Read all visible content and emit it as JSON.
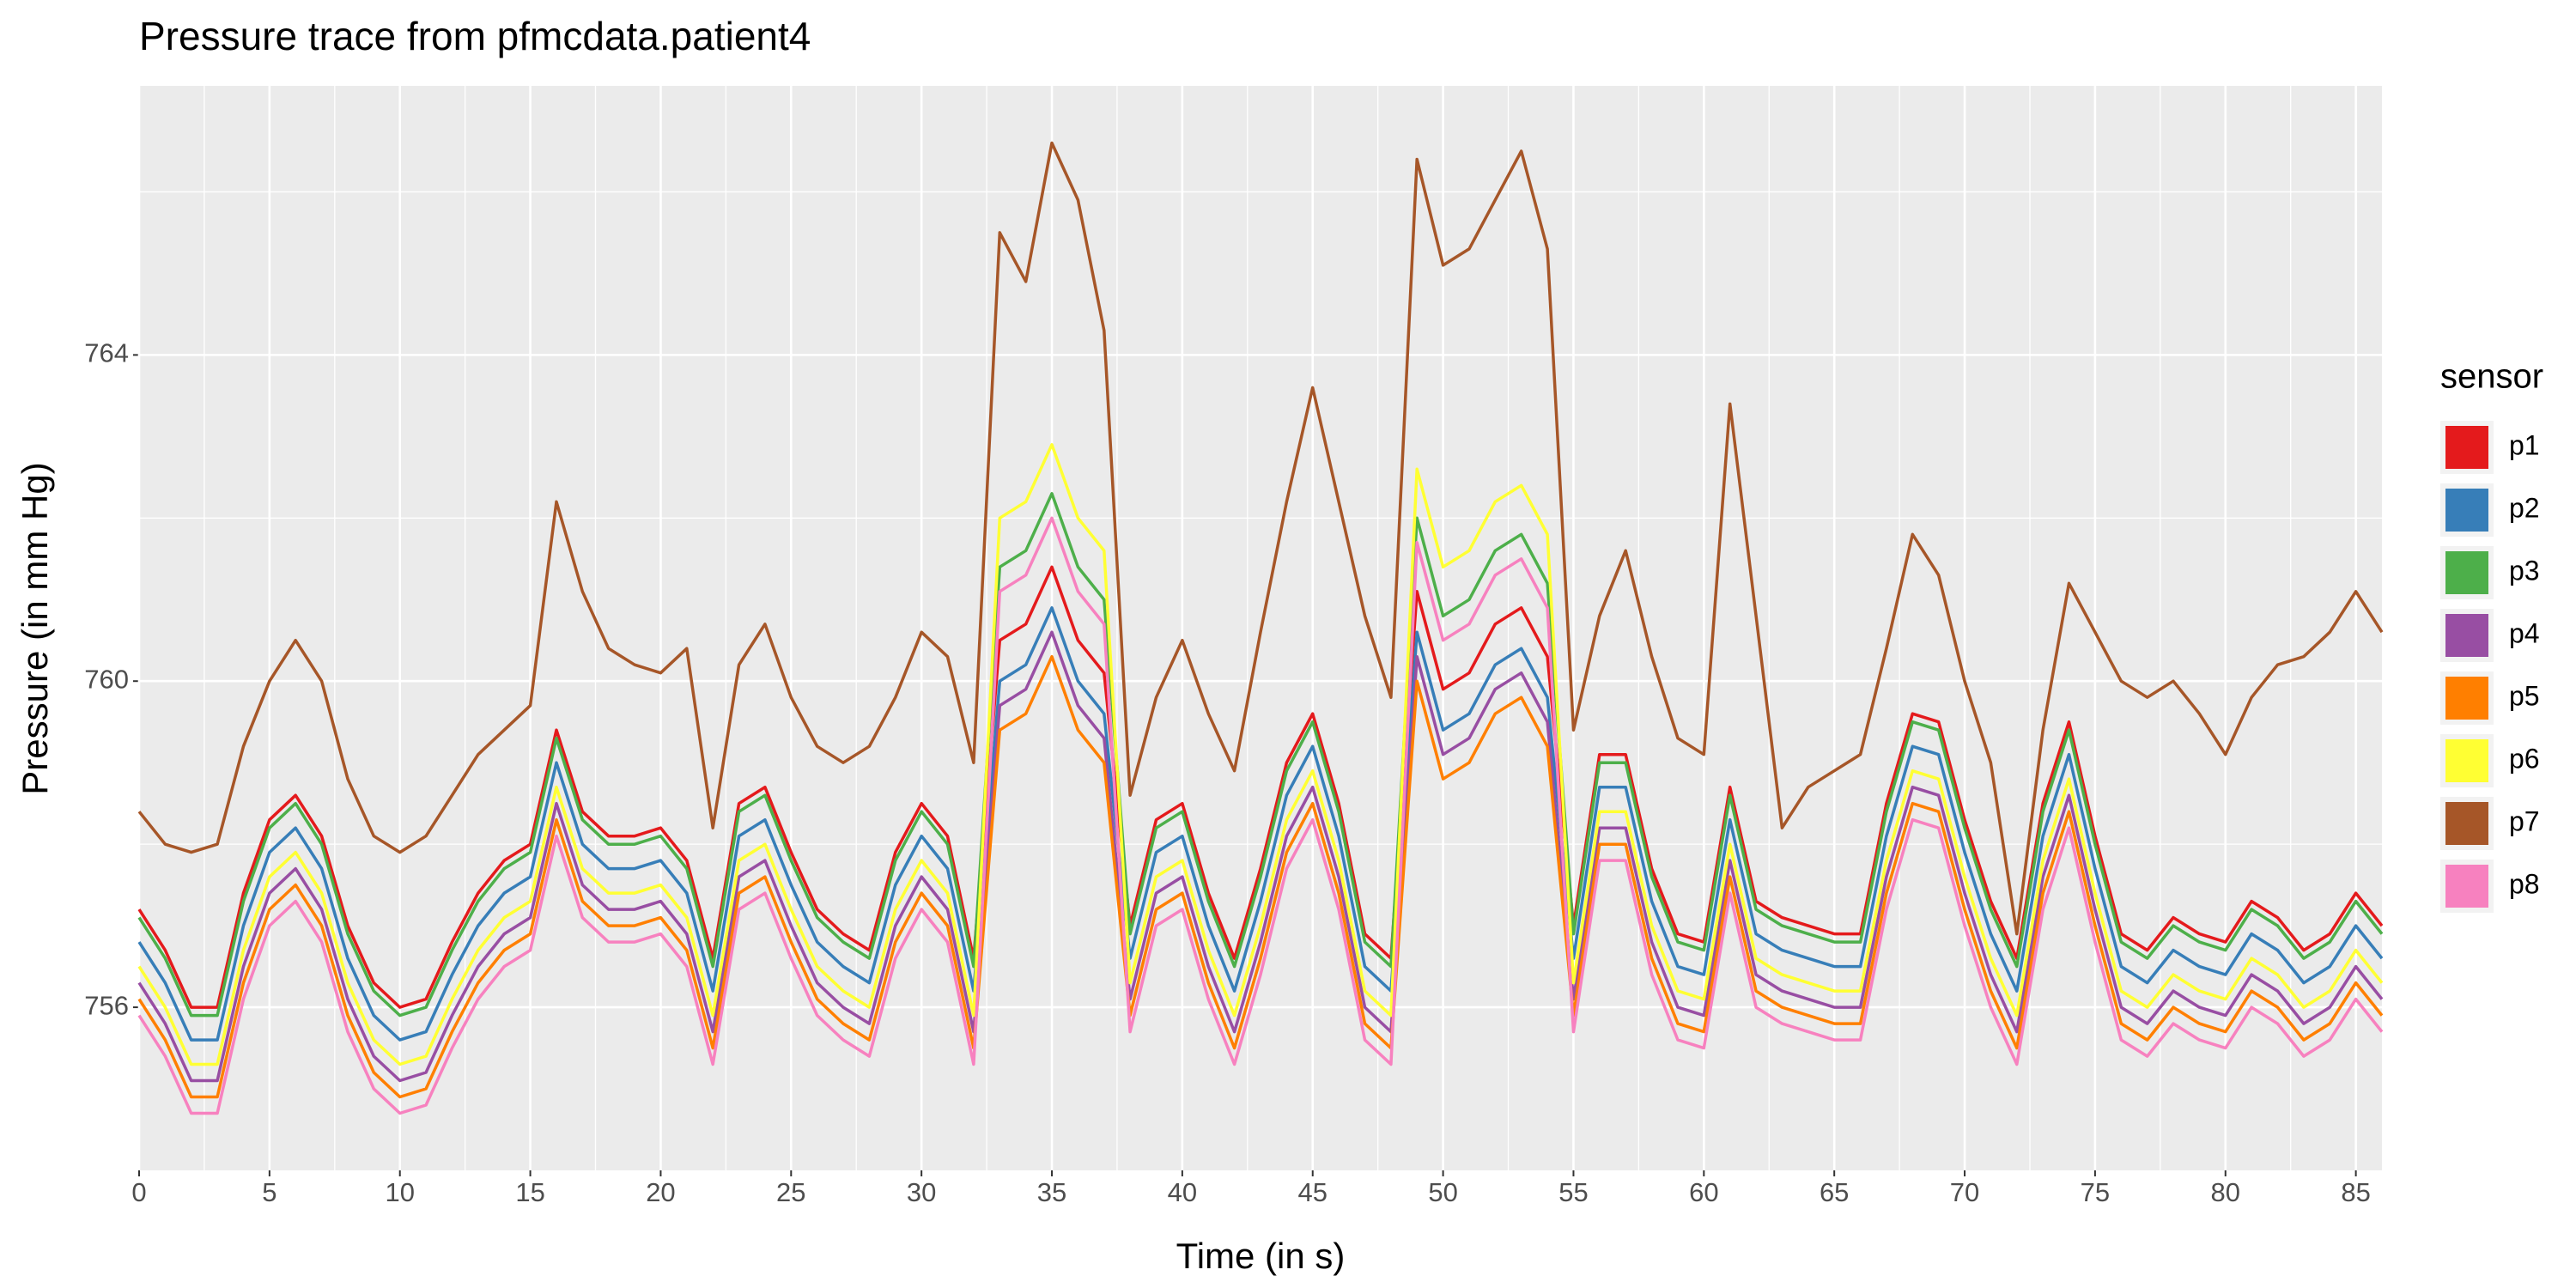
{
  "chart_data": {
    "type": "line",
    "title": "Pressure trace from pfmcdata.patient4",
    "x_label": "Time (in s)",
    "y_label": "Pressure (in mm Hg)",
    "legend_title": "sensor",
    "legend_position": "right",
    "grid": true,
    "background": "#EBEBEB",
    "xlim": [
      0,
      86
    ],
    "ylim": [
      754,
      767.3
    ],
    "xticks": [
      0,
      5,
      10,
      15,
      20,
      25,
      30,
      35,
      40,
      45,
      50,
      55,
      60,
      65,
      70,
      75,
      80,
      85
    ],
    "yticks": [
      756,
      760,
      764
    ],
    "x_minor_ticks": [
      2.5,
      7.5,
      12.5,
      17.5,
      22.5,
      27.5,
      32.5,
      37.5,
      42.5,
      47.5,
      52.5,
      57.5,
      62.5,
      67.5,
      72.5,
      77.5,
      82.5
    ],
    "y_minor_ticks": [
      758,
      762,
      766
    ],
    "x": [
      0,
      1,
      2,
      3,
      4,
      5,
      6,
      7,
      8,
      9,
      10,
      11,
      12,
      13,
      14,
      15,
      16,
      17,
      18,
      19,
      20,
      21,
      22,
      23,
      24,
      25,
      26,
      27,
      28,
      29,
      30,
      31,
      32,
      33,
      34,
      35,
      36,
      37,
      38,
      39,
      40,
      41,
      42,
      43,
      44,
      45,
      46,
      47,
      48,
      49,
      50,
      51,
      52,
      53,
      54,
      55,
      56,
      57,
      58,
      59,
      60,
      61,
      62,
      63,
      64,
      65,
      66,
      67,
      68,
      69,
      70,
      71,
      72,
      73,
      74,
      75,
      76,
      77,
      78,
      79,
      80,
      81,
      82,
      83,
      84,
      85,
      86
    ],
    "series": [
      {
        "name": "p1",
        "color": "#E41A1C",
        "values": [
          757.2,
          756.7,
          756.0,
          756.0,
          757.4,
          758.3,
          758.6,
          758.1,
          757.0,
          756.3,
          756.0,
          756.1,
          756.8,
          757.4,
          757.8,
          758.0,
          759.4,
          758.4,
          758.1,
          758.1,
          758.2,
          757.8,
          756.6,
          758.5,
          758.7,
          757.9,
          757.2,
          756.9,
          756.7,
          757.9,
          758.5,
          758.1,
          756.6,
          760.5,
          760.7,
          761.4,
          760.5,
          760.1,
          757.0,
          758.3,
          758.5,
          757.4,
          756.6,
          757.7,
          759.0,
          759.6,
          758.5,
          756.9,
          756.6,
          761.1,
          759.9,
          760.1,
          760.7,
          760.9,
          760.3,
          757.0,
          759.1,
          759.1,
          757.7,
          756.9,
          756.8,
          758.7,
          757.3,
          757.1,
          757.0,
          756.9,
          756.9,
          758.5,
          759.6,
          759.5,
          758.3,
          757.3,
          756.6,
          758.5,
          759.5,
          758.1,
          756.9,
          756.7,
          757.1,
          756.9,
          756.8,
          757.3,
          757.1,
          756.7,
          756.9,
          757.4,
          757.0
        ]
      },
      {
        "name": "p2",
        "color": "#377EB8",
        "values": [
          756.8,
          756.3,
          755.6,
          755.6,
          757.0,
          757.9,
          758.2,
          757.7,
          756.6,
          755.9,
          755.6,
          755.7,
          756.4,
          757.0,
          757.4,
          757.6,
          759.0,
          758.0,
          757.7,
          757.7,
          757.8,
          757.4,
          756.2,
          758.1,
          758.3,
          757.5,
          756.8,
          756.5,
          756.3,
          757.5,
          758.1,
          757.7,
          756.2,
          760.0,
          760.2,
          760.9,
          760.0,
          759.6,
          756.6,
          757.9,
          758.1,
          757.0,
          756.2,
          757.3,
          758.6,
          759.2,
          758.1,
          756.5,
          756.2,
          760.6,
          759.4,
          759.6,
          760.2,
          760.4,
          759.8,
          756.6,
          758.7,
          758.7,
          757.3,
          756.5,
          756.4,
          758.3,
          756.9,
          756.7,
          756.6,
          756.5,
          756.5,
          758.1,
          759.2,
          759.1,
          757.9,
          756.9,
          756.2,
          758.1,
          759.1,
          757.7,
          756.5,
          756.3,
          756.7,
          756.5,
          756.4,
          756.9,
          756.7,
          756.3,
          756.5,
          757.0,
          756.6
        ]
      },
      {
        "name": "p3",
        "color": "#4DAF4A",
        "values": [
          757.1,
          756.6,
          755.9,
          755.9,
          757.3,
          758.2,
          758.5,
          758.0,
          756.9,
          756.2,
          755.9,
          756.0,
          756.7,
          757.3,
          757.7,
          757.9,
          759.3,
          758.3,
          758.0,
          758.0,
          758.1,
          757.7,
          756.5,
          758.4,
          758.6,
          757.8,
          757.1,
          756.8,
          756.6,
          757.8,
          758.4,
          758.0,
          756.5,
          761.4,
          761.6,
          762.3,
          761.4,
          761.0,
          756.9,
          758.2,
          758.4,
          757.3,
          756.5,
          757.6,
          758.9,
          759.5,
          758.4,
          756.8,
          756.5,
          762.0,
          760.8,
          761.0,
          761.6,
          761.8,
          761.2,
          756.9,
          759.0,
          759.0,
          757.6,
          756.8,
          756.7,
          758.6,
          757.2,
          757.0,
          756.9,
          756.8,
          756.8,
          758.4,
          759.5,
          759.4,
          758.2,
          757.2,
          756.5,
          758.4,
          759.4,
          758.0,
          756.8,
          756.6,
          757.0,
          756.8,
          756.7,
          757.2,
          757.0,
          756.6,
          756.8,
          757.3,
          756.9
        ]
      },
      {
        "name": "p4",
        "color": "#984EA3",
        "values": [
          756.3,
          755.8,
          755.1,
          755.1,
          756.5,
          757.4,
          757.7,
          757.2,
          756.1,
          755.4,
          755.1,
          755.2,
          755.9,
          756.5,
          756.9,
          757.1,
          758.5,
          757.5,
          757.2,
          757.2,
          757.3,
          756.9,
          755.7,
          757.6,
          757.8,
          757.0,
          756.3,
          756.0,
          755.8,
          757.0,
          757.6,
          757.2,
          755.7,
          759.7,
          759.9,
          760.6,
          759.7,
          759.3,
          756.1,
          757.4,
          757.6,
          756.5,
          755.7,
          756.8,
          758.1,
          758.7,
          757.6,
          756.0,
          755.7,
          760.3,
          759.1,
          759.3,
          759.9,
          760.1,
          759.5,
          756.1,
          758.2,
          758.2,
          756.8,
          756.0,
          755.9,
          757.8,
          756.4,
          756.2,
          756.1,
          756.0,
          756.0,
          757.6,
          758.7,
          758.6,
          757.4,
          756.4,
          755.7,
          757.6,
          758.6,
          757.2,
          756.0,
          755.8,
          756.2,
          756.0,
          755.9,
          756.4,
          756.2,
          755.8,
          756.0,
          756.5,
          756.1
        ]
      },
      {
        "name": "p5",
        "color": "#FF7F00",
        "values": [
          756.1,
          755.6,
          754.9,
          754.9,
          756.3,
          757.2,
          757.5,
          757.0,
          755.9,
          755.2,
          754.9,
          755.0,
          755.7,
          756.3,
          756.7,
          756.9,
          758.3,
          757.3,
          757.0,
          757.0,
          757.1,
          756.7,
          755.5,
          757.4,
          757.6,
          756.8,
          756.1,
          755.8,
          755.6,
          756.8,
          757.4,
          757.0,
          755.5,
          759.4,
          759.6,
          760.3,
          759.4,
          759.0,
          755.9,
          757.2,
          757.4,
          756.3,
          755.5,
          756.6,
          757.9,
          758.5,
          757.4,
          755.8,
          755.5,
          760.0,
          758.8,
          759.0,
          759.6,
          759.8,
          759.2,
          755.9,
          758.0,
          758.0,
          756.6,
          755.8,
          755.7,
          757.6,
          756.2,
          756.0,
          755.9,
          755.8,
          755.8,
          757.4,
          758.5,
          758.4,
          757.2,
          756.2,
          755.5,
          757.4,
          758.4,
          757.0,
          755.8,
          755.6,
          756.0,
          755.8,
          755.7,
          756.2,
          756.0,
          755.6,
          755.8,
          756.3,
          755.9
        ]
      },
      {
        "name": "p6",
        "color": "#FFFF33",
        "values": [
          756.5,
          756.0,
          755.3,
          755.3,
          756.7,
          757.6,
          757.9,
          757.4,
          756.3,
          755.6,
          755.3,
          755.4,
          756.1,
          756.7,
          757.1,
          757.3,
          758.7,
          757.7,
          757.4,
          757.4,
          757.5,
          757.1,
          755.9,
          757.8,
          758.0,
          757.2,
          756.5,
          756.2,
          756.0,
          757.2,
          757.8,
          757.4,
          755.9,
          762.0,
          762.2,
          762.9,
          762.0,
          761.6,
          756.3,
          757.6,
          757.8,
          756.7,
          755.9,
          757.0,
          758.3,
          758.9,
          757.8,
          756.2,
          755.9,
          762.6,
          761.4,
          761.6,
          762.2,
          762.4,
          761.8,
          756.3,
          758.4,
          758.4,
          757.0,
          756.2,
          756.1,
          758.0,
          756.6,
          756.4,
          756.3,
          756.2,
          756.2,
          757.8,
          758.9,
          758.8,
          757.6,
          756.6,
          755.9,
          757.8,
          758.8,
          757.4,
          756.2,
          756.0,
          756.4,
          756.2,
          756.1,
          756.6,
          756.4,
          756.0,
          756.2,
          756.7,
          756.3
        ]
      },
      {
        "name": "p7",
        "color": "#A65628",
        "values": [
          758.4,
          758.0,
          757.9,
          758.0,
          759.2,
          760.0,
          760.5,
          760.0,
          758.8,
          758.1,
          757.9,
          758.1,
          758.6,
          759.1,
          759.4,
          759.7,
          762.2,
          761.1,
          760.4,
          760.2,
          760.1,
          760.4,
          758.2,
          760.2,
          760.7,
          759.8,
          759.2,
          759.0,
          759.2,
          759.8,
          760.6,
          760.3,
          759.0,
          765.5,
          764.9,
          766.6,
          765.9,
          764.3,
          758.6,
          759.8,
          760.5,
          759.6,
          758.9,
          760.6,
          762.2,
          763.6,
          762.2,
          760.8,
          759.8,
          766.4,
          765.1,
          765.3,
          765.9,
          766.5,
          765.3,
          759.4,
          760.8,
          761.6,
          760.3,
          759.3,
          759.1,
          763.4,
          760.8,
          758.2,
          758.7,
          758.9,
          759.1,
          760.4,
          761.8,
          761.3,
          760.0,
          759.0,
          756.9,
          759.4,
          761.2,
          760.6,
          760.0,
          759.8,
          760.0,
          759.6,
          759.1,
          759.8,
          760.2,
          760.3,
          760.6,
          761.1,
          760.6
        ]
      },
      {
        "name": "p8",
        "color": "#F781BF",
        "values": [
          755.9,
          755.4,
          754.7,
          754.7,
          756.1,
          757.0,
          757.3,
          756.8,
          755.7,
          755.0,
          754.7,
          754.8,
          755.5,
          756.1,
          756.5,
          756.7,
          758.1,
          757.1,
          756.8,
          756.8,
          756.9,
          756.5,
          755.3,
          757.2,
          757.4,
          756.6,
          755.9,
          755.6,
          755.4,
          756.6,
          757.2,
          756.8,
          755.3,
          761.1,
          761.3,
          762.0,
          761.1,
          760.7,
          755.7,
          757.0,
          757.2,
          756.1,
          755.3,
          756.4,
          757.7,
          758.3,
          757.2,
          755.6,
          755.3,
          761.7,
          760.5,
          760.7,
          761.3,
          761.5,
          760.9,
          755.7,
          757.8,
          757.8,
          756.4,
          755.6,
          755.5,
          757.4,
          756.0,
          755.8,
          755.7,
          755.6,
          755.6,
          757.2,
          758.3,
          758.2,
          757.0,
          756.0,
          755.3,
          757.2,
          758.2,
          756.8,
          755.6,
          755.4,
          755.8,
          755.6,
          755.5,
          756.0,
          755.8,
          755.4,
          755.6,
          756.1,
          755.7
        ]
      }
    ]
  }
}
